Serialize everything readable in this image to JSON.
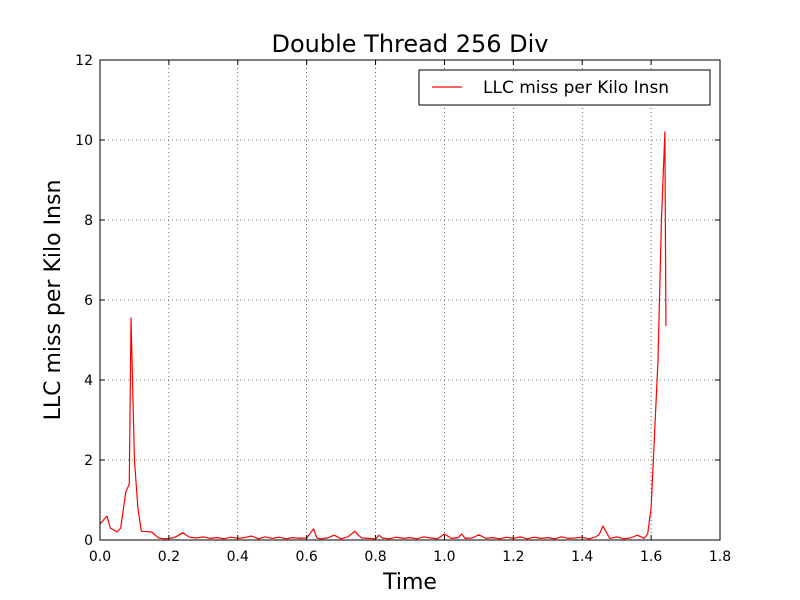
{
  "chart_data": {
    "type": "line",
    "title": "Double Thread 256 Div",
    "xlabel": "Time",
    "ylabel": "LLC miss per Kilo Insn",
    "xlim": [
      0,
      1.8
    ],
    "ylim": [
      0,
      12
    ],
    "xticks": [
      "0.0",
      "0.2",
      "0.4",
      "0.6",
      "0.8",
      "1.0",
      "1.2",
      "1.4",
      "1.6",
      "1.8"
    ],
    "yticks": [
      "0",
      "2",
      "4",
      "6",
      "8",
      "10",
      "12"
    ],
    "grid": true,
    "legend_position": "top-right",
    "series": [
      {
        "name": "LLC miss per Kilo Insn",
        "color": "#ff0000",
        "x": [
          0.0,
          0.02,
          0.03,
          0.05,
          0.06,
          0.075,
          0.085,
          0.09,
          0.1,
          0.11,
          0.12,
          0.15,
          0.17,
          0.19,
          0.21,
          0.22,
          0.24,
          0.26,
          0.28,
          0.3,
          0.32,
          0.34,
          0.36,
          0.38,
          0.4,
          0.42,
          0.44,
          0.46,
          0.48,
          0.5,
          0.52,
          0.54,
          0.56,
          0.58,
          0.6,
          0.62,
          0.63,
          0.64,
          0.66,
          0.68,
          0.7,
          0.72,
          0.74,
          0.75,
          0.76,
          0.78,
          0.8,
          0.81,
          0.82,
          0.84,
          0.86,
          0.88,
          0.9,
          0.92,
          0.94,
          0.96,
          0.98,
          1.0,
          1.02,
          1.04,
          1.05,
          1.06,
          1.08,
          1.1,
          1.12,
          1.14,
          1.16,
          1.18,
          1.2,
          1.22,
          1.24,
          1.26,
          1.28,
          1.3,
          1.32,
          1.34,
          1.36,
          1.38,
          1.4,
          1.42,
          1.44,
          1.45,
          1.46,
          1.48,
          1.5,
          1.52,
          1.54,
          1.56,
          1.58,
          1.59,
          1.6,
          1.62,
          1.63,
          1.64,
          1.643
        ],
        "y": [
          0.4,
          0.6,
          0.3,
          0.2,
          0.3,
          1.2,
          1.4,
          5.55,
          2.0,
          0.8,
          0.22,
          0.2,
          0.05,
          0.03,
          0.05,
          0.08,
          0.18,
          0.07,
          0.05,
          0.08,
          0.04,
          0.06,
          0.03,
          0.07,
          0.04,
          0.06,
          0.1,
          0.03,
          0.08,
          0.04,
          0.07,
          0.03,
          0.06,
          0.04,
          0.05,
          0.28,
          0.05,
          0.03,
          0.05,
          0.12,
          0.03,
          0.08,
          0.22,
          0.12,
          0.05,
          0.04,
          0.03,
          0.12,
          0.05,
          0.03,
          0.07,
          0.04,
          0.06,
          0.03,
          0.08,
          0.05,
          0.03,
          0.15,
          0.04,
          0.06,
          0.15,
          0.04,
          0.05,
          0.13,
          0.04,
          0.06,
          0.03,
          0.07,
          0.04,
          0.08,
          0.03,
          0.07,
          0.04,
          0.06,
          0.03,
          0.08,
          0.04,
          0.05,
          0.07,
          0.03,
          0.08,
          0.15,
          0.35,
          0.04,
          0.08,
          0.03,
          0.05,
          0.12,
          0.04,
          0.15,
          0.8,
          4.5,
          8.0,
          10.2,
          5.35
        ]
      }
    ]
  }
}
